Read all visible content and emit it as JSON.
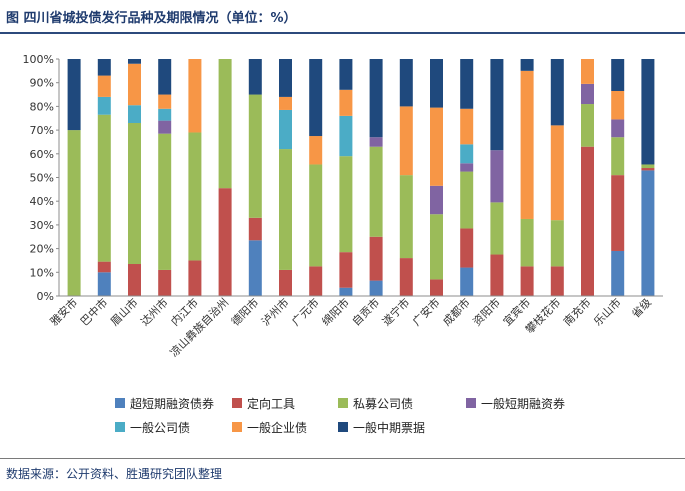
{
  "header": {
    "title": "图  四川省城投债发行品种及期限情况（单位：%）"
  },
  "footer": {
    "source": "数据来源：公开资料、胜遇研究团队整理"
  },
  "chart_data": {
    "type": "bar",
    "stacked": true,
    "title": "",
    "xlabel": "",
    "ylabel": "",
    "ylim": [
      0,
      100
    ],
    "yticks": [
      "0%",
      "10%",
      "20%",
      "30%",
      "40%",
      "50%",
      "60%",
      "70%",
      "80%",
      "90%",
      "100%"
    ],
    "grid": false,
    "legend_position": "bottom",
    "categories": [
      "雅安市",
      "巴中市",
      "眉山市",
      "达州市",
      "内江市",
      "凉山彝族自治州",
      "德阳市",
      "泸州市",
      "广元市",
      "绵阳市",
      "自贡市",
      "遂宁市",
      "广安市",
      "成都市",
      "资阳市",
      "宜宾市",
      "攀枝花市",
      "南充市",
      "乐山市",
      "省级"
    ],
    "series": [
      {
        "name": "超短期融资债券",
        "color": "#4f81bd",
        "values": [
          0,
          10,
          0,
          0,
          0,
          0,
          23.5,
          0,
          0,
          3.5,
          6.5,
          0,
          0,
          12,
          0,
          0,
          0,
          0,
          19,
          53
        ]
      },
      {
        "name": "定向工具",
        "color": "#c0504d",
        "values": [
          0,
          4.5,
          13.5,
          11,
          15,
          45.5,
          9.5,
          11,
          12.5,
          15,
          18.5,
          16,
          7,
          16.5,
          17.5,
          12.5,
          12.5,
          63,
          32,
          1
        ]
      },
      {
        "name": "私募公司债",
        "color": "#9bbb59",
        "values": [
          70,
          62,
          59.5,
          57.5,
          54,
          54.5,
          52,
          51,
          43,
          40.5,
          38,
          35,
          27.5,
          24,
          22,
          20,
          19.5,
          18,
          16,
          1.5
        ]
      },
      {
        "name": "一般短期融资券",
        "color": "#8064a2",
        "values": [
          0,
          0,
          0,
          5.5,
          0,
          0,
          0,
          0,
          0,
          0,
          4,
          0,
          12,
          3.5,
          22,
          0,
          0,
          8.5,
          7.5,
          0
        ]
      },
      {
        "name": "一般公司债",
        "color": "#4bacc6",
        "values": [
          0,
          7.5,
          7.5,
          5,
          0,
          0,
          0,
          16.5,
          0,
          17,
          0,
          0,
          0,
          8,
          0,
          0,
          0,
          0,
          0,
          0
        ]
      },
      {
        "name": "一般企业债",
        "color": "#f79646",
        "values": [
          0,
          9,
          17.5,
          6,
          31,
          0,
          0,
          5.5,
          12,
          11,
          0,
          29,
          33,
          15,
          0,
          62.5,
          40,
          10.5,
          12,
          0
        ]
      },
      {
        "name": "一般中期票据",
        "color": "#1f497d",
        "values": [
          30,
          7,
          2,
          15,
          0,
          0,
          15,
          16,
          32.5,
          13,
          33,
          20,
          20.5,
          21,
          38.5,
          5,
          28,
          0,
          13.5,
          44.5
        ]
      }
    ]
  }
}
